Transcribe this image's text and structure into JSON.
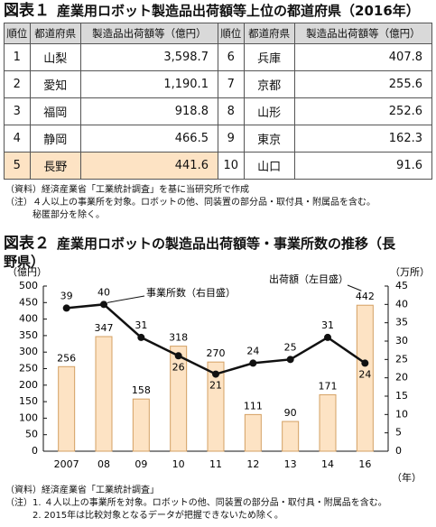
{
  "table1": {
    "figure_label": "図表１",
    "title": "産業用ロボット製造品出荷額等上位の都道府県（2016年）",
    "headers": [
      "順位",
      "都道府県",
      "製造品出荷額等（億円）",
      "順位",
      "都道府県",
      "製造品出荷額等（億円）"
    ],
    "rows": [
      [
        "1",
        "山梨",
        "3,598.7",
        "6",
        "兵庫",
        "407.8"
      ],
      [
        "2",
        "愛知",
        "1,190.1",
        "7",
        "京都",
        "255.6"
      ],
      [
        "3",
        "福岡",
        "918.8",
        "8",
        "山形",
        "252.6"
      ],
      [
        "4",
        "静岡",
        "466.5",
        "9",
        "東京",
        "162.3"
      ],
      [
        "5",
        "長野",
        "441.6",
        "10",
        "山口",
        "91.6"
      ]
    ],
    "notes": [
      "（資料）経済産業省「工業統計調査」を基に当研究所で作成",
      "（注）４人以上の事業所を対象。ロボットの他、同装置の部分品・取付具・附属品を含む。",
      "秘匿部分を除く。"
    ]
  },
  "chart_data": {
    "type": "bar",
    "figure_label": "図表２",
    "title": "産業用ロボットの製造品出荷額等・事業所数の推移（長野県）",
    "categories": [
      "2007",
      "08",
      "09",
      "10",
      "11",
      "12",
      "13",
      "14",
      "16"
    ],
    "series": [
      {
        "name": "出荷額（左目盛）",
        "type": "bar",
        "color": "#fde3c4",
        "values": [
          256,
          347,
          158,
          318,
          270,
          111,
          90,
          171,
          442
        ]
      },
      {
        "name": "事業所数（右目盛）",
        "type": "line",
        "color": "#111111",
        "axis": "y2",
        "values": [
          39,
          40,
          31,
          26,
          21,
          24,
          25,
          31,
          24
        ]
      }
    ],
    "ylim": [
      0,
      500
    ],
    "yticks": [
      0,
      50,
      100,
      150,
      200,
      250,
      300,
      350,
      400,
      450,
      500
    ],
    "ylabel": "（億円）",
    "y2lim": [
      0,
      45
    ],
    "y2ticks": [
      0,
      5,
      10,
      15,
      20,
      25,
      30,
      35,
      40,
      45
    ],
    "y2label": "（万所）",
    "xlabel": "（年）"
  },
  "chart_notes": [
    "（資料）経済産業省「工業統計調査」",
    "（注）1. ４人以上の事業所を対象。ロボットの他、同装置の部分品・取付具・附属品を含む。",
    "2. 2015年は比較対象となるデータが把握できないため除く。"
  ]
}
